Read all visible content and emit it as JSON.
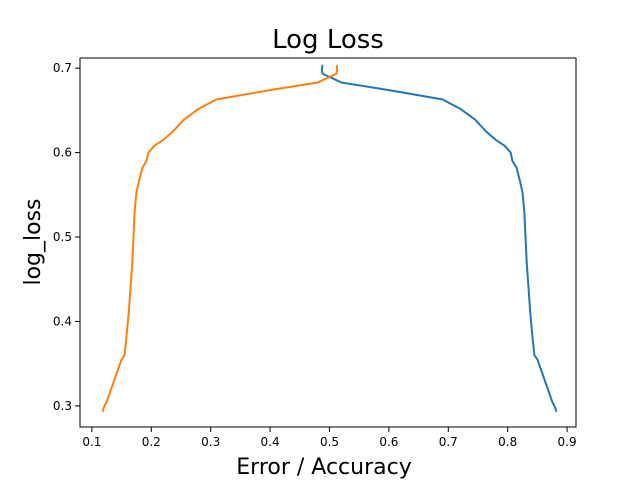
{
  "chart_data": {
    "type": "line",
    "title": "Log Loss",
    "xlabel": "Error / Accuracy",
    "ylabel": "log_loss",
    "xlim": [
      0.08,
      0.915
    ],
    "ylim": [
      0.275,
      0.712
    ],
    "xticks": [
      0.1,
      0.2,
      0.3,
      0.4,
      0.5,
      0.6,
      0.7,
      0.8,
      0.9
    ],
    "xtick_labels": [
      "0.1",
      "0.2",
      "0.3",
      "0.4",
      "0.5",
      "0.6",
      "0.7",
      "0.8",
      "0.9"
    ],
    "yticks": [
      0.3,
      0.4,
      0.5,
      0.6,
      0.7
    ],
    "ytick_labels": [
      "0.3",
      "0.4",
      "0.5",
      "0.6",
      "0.7"
    ],
    "grid": false,
    "legend": null,
    "series": [
      {
        "color": "#1f77b4",
        "points": [
          [
            0.488,
            0.704
          ],
          [
            0.487,
            0.697
          ],
          [
            0.489,
            0.693
          ],
          [
            0.505,
            0.688
          ],
          [
            0.52,
            0.683
          ],
          [
            0.6,
            0.674
          ],
          [
            0.69,
            0.663
          ],
          [
            0.72,
            0.652
          ],
          [
            0.745,
            0.639
          ],
          [
            0.765,
            0.624
          ],
          [
            0.78,
            0.615
          ],
          [
            0.795,
            0.608
          ],
          [
            0.805,
            0.6
          ],
          [
            0.808,
            0.59
          ],
          [
            0.815,
            0.582
          ],
          [
            0.82,
            0.568
          ],
          [
            0.825,
            0.553
          ],
          [
            0.828,
            0.53
          ],
          [
            0.83,
            0.5
          ],
          [
            0.832,
            0.47
          ],
          [
            0.835,
            0.44
          ],
          [
            0.838,
            0.41
          ],
          [
            0.842,
            0.38
          ],
          [
            0.845,
            0.36
          ],
          [
            0.85,
            0.355
          ],
          [
            0.855,
            0.345
          ],
          [
            0.86,
            0.335
          ],
          [
            0.865,
            0.325
          ],
          [
            0.87,
            0.315
          ],
          [
            0.875,
            0.305
          ],
          [
            0.88,
            0.298
          ],
          [
            0.882,
            0.293
          ]
        ]
      },
      {
        "color": "#ff7f0e",
        "points": [
          [
            0.512,
            0.704
          ],
          [
            0.513,
            0.697
          ],
          [
            0.511,
            0.693
          ],
          [
            0.495,
            0.688
          ],
          [
            0.48,
            0.683
          ],
          [
            0.4,
            0.674
          ],
          [
            0.31,
            0.663
          ],
          [
            0.28,
            0.652
          ],
          [
            0.255,
            0.639
          ],
          [
            0.235,
            0.624
          ],
          [
            0.22,
            0.615
          ],
          [
            0.205,
            0.608
          ],
          [
            0.195,
            0.6
          ],
          [
            0.192,
            0.59
          ],
          [
            0.185,
            0.582
          ],
          [
            0.18,
            0.568
          ],
          [
            0.175,
            0.553
          ],
          [
            0.172,
            0.53
          ],
          [
            0.17,
            0.5
          ],
          [
            0.168,
            0.47
          ],
          [
            0.165,
            0.44
          ],
          [
            0.162,
            0.41
          ],
          [
            0.158,
            0.38
          ],
          [
            0.155,
            0.36
          ],
          [
            0.15,
            0.355
          ],
          [
            0.145,
            0.345
          ],
          [
            0.14,
            0.335
          ],
          [
            0.135,
            0.325
          ],
          [
            0.13,
            0.315
          ],
          [
            0.125,
            0.305
          ],
          [
            0.12,
            0.298
          ],
          [
            0.118,
            0.293
          ]
        ]
      }
    ]
  }
}
